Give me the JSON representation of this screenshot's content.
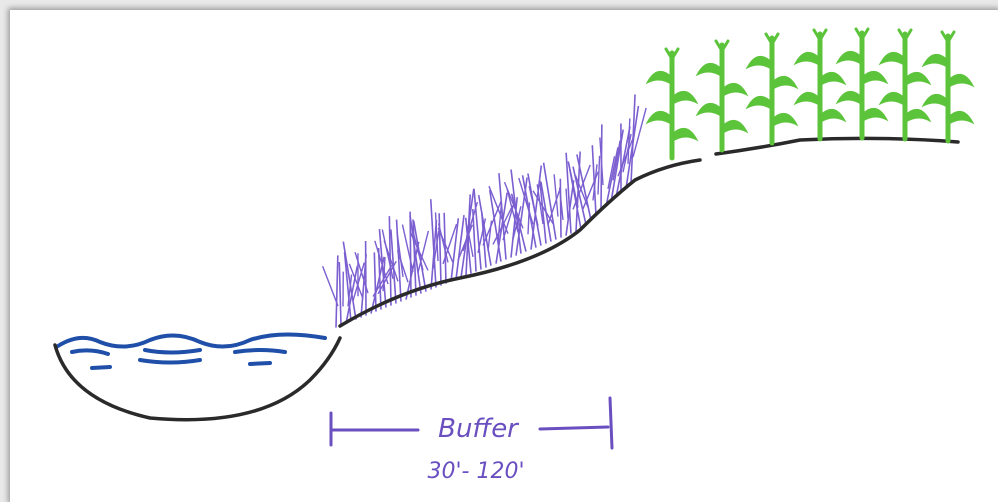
{
  "labels": {
    "buffer": "Buffer",
    "width": "30'- 120'"
  }
}
